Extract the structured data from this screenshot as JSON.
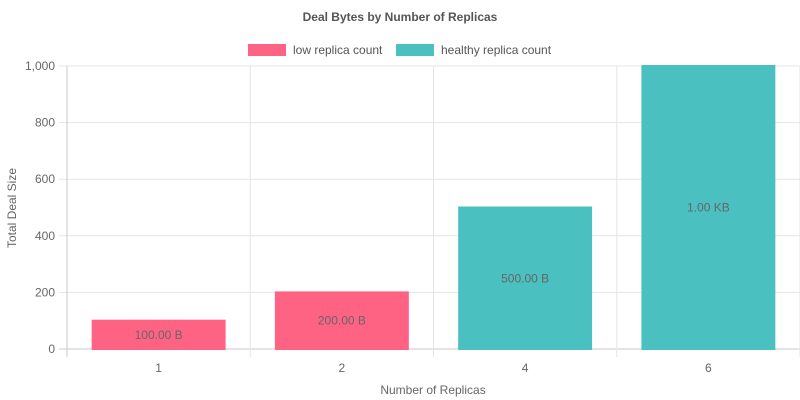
{
  "chart_data": {
    "type": "bar",
    "title": "Deal Bytes by Number of Replicas",
    "xlabel": "Number of Replicas",
    "ylabel": "Total Deal Size",
    "categories": [
      "1",
      "2",
      "4",
      "6"
    ],
    "ylim": [
      0,
      1000
    ],
    "yticks": [
      0,
      200,
      400,
      600,
      800,
      1000
    ],
    "ytick_labels": [
      "0",
      "200",
      "400",
      "600",
      "800",
      "1,000"
    ],
    "grid": true,
    "legend_position": "top",
    "series": [
      {
        "name": "low replica count",
        "color": "#ff6384",
        "values": [
          100,
          200,
          null,
          null
        ]
      },
      {
        "name": "healthy replica count",
        "color": "#4bc0c0",
        "values": [
          null,
          null,
          500,
          1000
        ]
      }
    ],
    "data_labels": [
      "100.00 B",
      "200.00 B",
      "500.00 B",
      "1.00 KB"
    ]
  }
}
